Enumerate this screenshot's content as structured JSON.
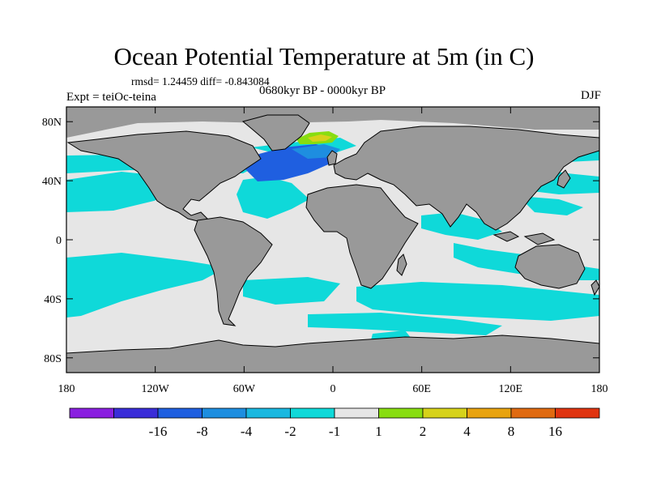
{
  "title": "Ocean Potential Temperature at 5m (in C)",
  "stats": "rmsd= 1.24459 diff= -0.843084",
  "experiment": "Expt = teiOc-teina",
  "period": "0680kyr BP - 0000kyr BP",
  "season": "DJF",
  "map": {
    "projection": "cylindrical-equidistant",
    "lon_range": [
      -180,
      180
    ],
    "lat_range": [
      -90,
      90
    ],
    "land_color": "#999999",
    "lat_ticks": [
      {
        "lat": 80,
        "label": "80N"
      },
      {
        "lat": 40,
        "label": "40N"
      },
      {
        "lat": 0,
        "label": "0"
      },
      {
        "lat": -40,
        "label": "40S"
      },
      {
        "lat": -80,
        "label": "80S"
      }
    ],
    "lon_ticks": [
      {
        "lon": -180,
        "label": "180"
      },
      {
        "lon": -120,
        "label": "120W"
      },
      {
        "lon": -60,
        "label": "60W"
      },
      {
        "lon": 0,
        "label": "0"
      },
      {
        "lon": 60,
        "label": "60E"
      },
      {
        "lon": 120,
        "label": "120E"
      },
      {
        "lon": 180,
        "label": "180"
      }
    ]
  },
  "colorbar": {
    "colors": [
      "#8a1fe0",
      "#3a2dd8",
      "#1f5fe0",
      "#1e8ee0",
      "#1ab8e0",
      "#0fd9d9",
      "#e6e6e6",
      "#88dd11",
      "#d6d21a",
      "#e8a30f",
      "#e06a10",
      "#e03410"
    ],
    "labels": [
      "-16",
      "-8",
      "-4",
      "-2",
      "-1",
      "1",
      "2",
      "4",
      "8",
      "16"
    ]
  }
}
